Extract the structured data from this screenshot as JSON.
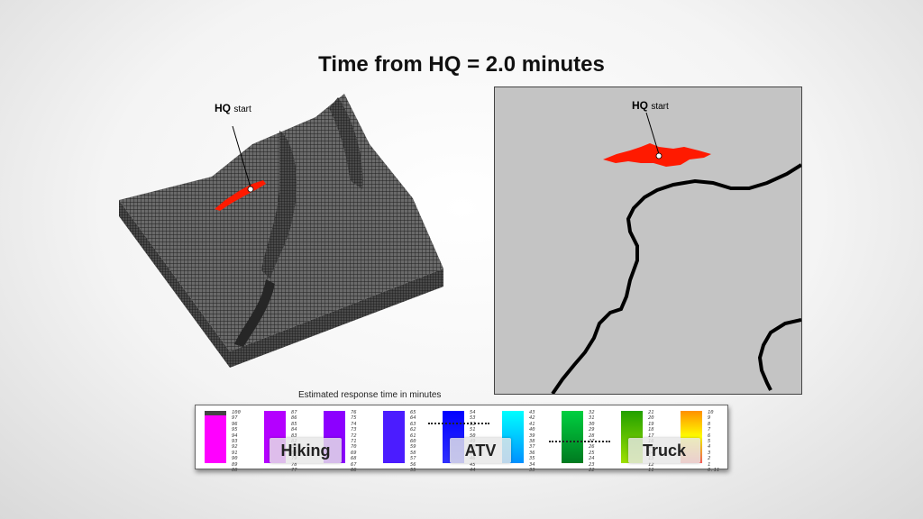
{
  "title": "Time from HQ = 2.0 minutes",
  "hq_label": {
    "bold": "HQ",
    "small": "start"
  },
  "legend": {
    "title": "Estimated response time in minutes",
    "modes": {
      "hiking": "Hiking",
      "atv": "ATV",
      "truck": "Truck"
    },
    "columns": [
      [
        "100",
        "97",
        "96",
        "95",
        "94",
        "93",
        "92",
        "91",
        "90",
        "89",
        "88"
      ],
      [
        "87",
        "86",
        "85",
        "84",
        "83",
        "82",
        "81",
        "80",
        "79",
        "78",
        "77"
      ],
      [
        "76",
        "75",
        "74",
        "73",
        "72",
        "71",
        "70",
        "69",
        "68",
        "67",
        "66"
      ],
      [
        "65",
        "64",
        "63",
        "62",
        "61",
        "60",
        "59",
        "58",
        "57",
        "56",
        "55"
      ],
      [
        "54",
        "53",
        "52",
        "51",
        "50",
        "49",
        "48",
        "47",
        "46",
        "45",
        "44"
      ],
      [
        "43",
        "42",
        "41",
        "40",
        "39",
        "38",
        "37",
        "36",
        "35",
        "34",
        "33"
      ],
      [
        "32",
        "31",
        "30",
        "29",
        "28",
        "27",
        "26",
        "25",
        "24",
        "23",
        "22"
      ],
      [
        "21",
        "20",
        "19",
        "18",
        "17",
        "16",
        "15",
        "14",
        "13",
        "12",
        "11"
      ],
      [
        "10",
        "9",
        "8",
        "7",
        "6",
        "5",
        "4",
        "3",
        "2",
        "1",
        "0.11"
      ]
    ],
    "colors": {
      "magenta": "#ff00ff",
      "violet": "#b400ff",
      "purple": "#8c00ff",
      "indigo": "#4b1cff",
      "blue": "#1010ff",
      "cyan": "#00c8ff",
      "green": "#009f2a",
      "lime": "#39b500",
      "orange": "#ffb000"
    }
  },
  "colors": {
    "response_area": "#ff1a00",
    "map_background": "#c4c4c4",
    "terrain": "#5a5a5a",
    "road": "#000000"
  }
}
